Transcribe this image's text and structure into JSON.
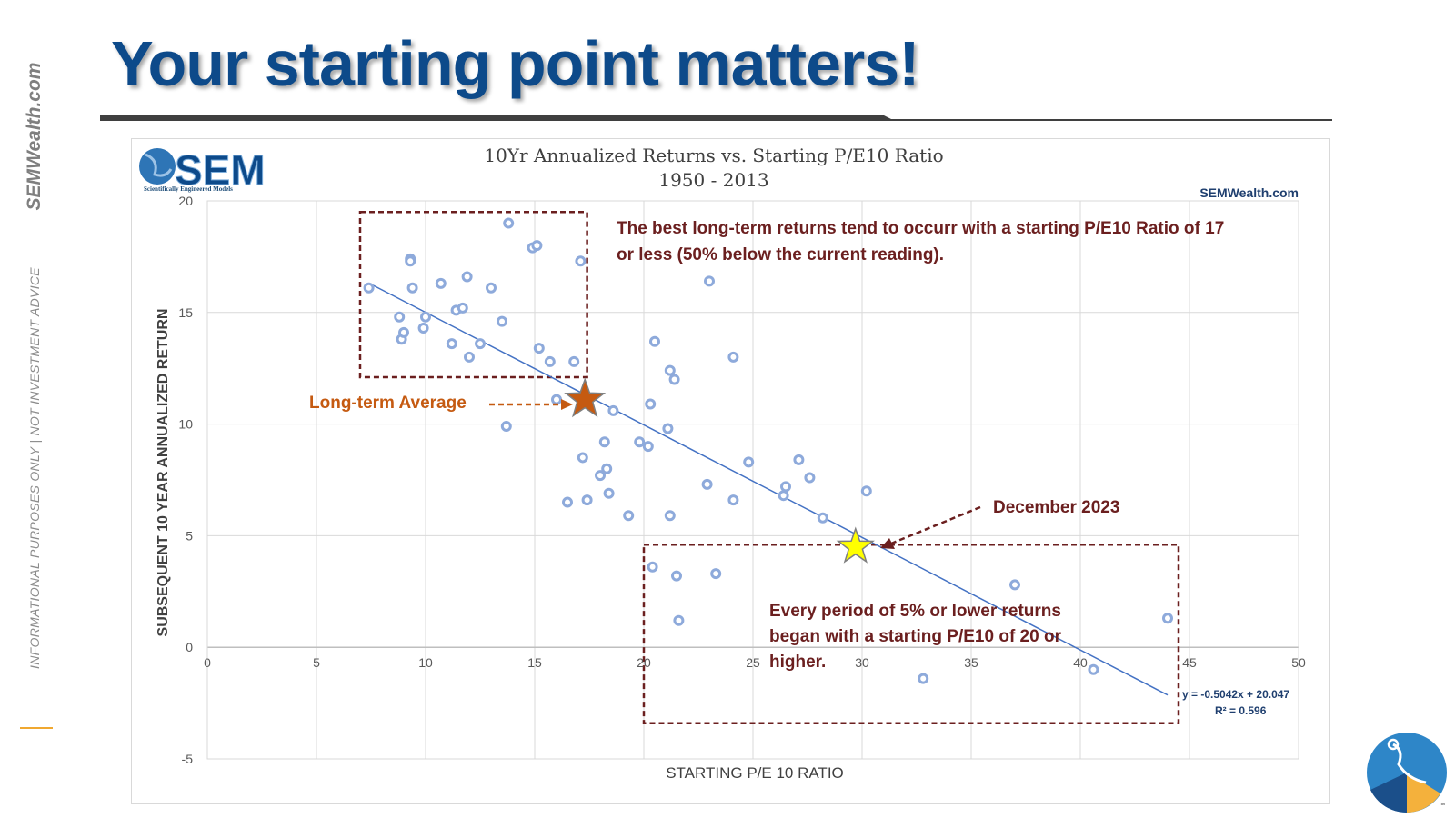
{
  "slide": {
    "title": "Your starting point matters!",
    "side_brand": "SEMWealth.com",
    "side_disclaimer": "INFORMATIONAL PURPOSES ONLY | NOT INVESTMENT ADVICE"
  },
  "logo": {
    "text": "SEM",
    "tagline": "Scientifically Engineered Models",
    "site": "SEMWealth.com",
    "tm": "™"
  },
  "colors": {
    "title": "#0d4a8a",
    "points": "#8eaadb",
    "trendline": "#4472c4",
    "box": "#6b1f1f",
    "annotation": "#6b1f1f",
    "average": "#c55a11",
    "current": "#ffff00"
  },
  "chart_data": {
    "type": "scatter",
    "title_line1": "10Yr Annualized Returns vs. Starting P/E10 Ratio",
    "title_line2": "1950 - 2013",
    "xlabel": "STARTING P/E 10 RATIO",
    "ylabel": "SUBSEQUENT 10 YEAR ANNUALIZED RETURN",
    "xlim": [
      0,
      50
    ],
    "ylim": [
      -5,
      20
    ],
    "xticks": [
      0,
      5,
      10,
      15,
      20,
      25,
      30,
      35,
      40,
      45,
      50
    ],
    "yticks": [
      -5,
      0,
      5,
      10,
      15,
      20
    ],
    "grid": true,
    "points": [
      [
        7.4,
        16.1
      ],
      [
        8.8,
        14.8
      ],
      [
        8.9,
        13.8
      ],
      [
        9.0,
        14.1
      ],
      [
        9.3,
        17.4
      ],
      [
        9.3,
        17.3
      ],
      [
        9.4,
        16.1
      ],
      [
        9.9,
        14.3
      ],
      [
        10.0,
        14.8
      ],
      [
        10.7,
        16.3
      ],
      [
        11.2,
        13.6
      ],
      [
        11.4,
        15.1
      ],
      [
        11.7,
        15.2
      ],
      [
        11.9,
        16.6
      ],
      [
        12.0,
        13.0
      ],
      [
        12.5,
        13.6
      ],
      [
        13.0,
        16.1
      ],
      [
        13.5,
        14.6
      ],
      [
        13.7,
        9.9
      ],
      [
        13.8,
        19.0
      ],
      [
        14.9,
        17.9
      ],
      [
        15.1,
        18.0
      ],
      [
        15.2,
        13.4
      ],
      [
        15.7,
        12.8
      ],
      [
        16.0,
        11.1
      ],
      [
        16.5,
        6.5
      ],
      [
        16.8,
        12.8
      ],
      [
        17.1,
        17.3
      ],
      [
        17.2,
        8.5
      ],
      [
        17.4,
        6.6
      ],
      [
        18.0,
        7.7
      ],
      [
        18.2,
        9.2
      ],
      [
        18.3,
        8.0
      ],
      [
        18.4,
        6.9
      ],
      [
        18.6,
        10.6
      ],
      [
        19.3,
        5.9
      ],
      [
        19.8,
        9.2
      ],
      [
        20.2,
        9.0
      ],
      [
        20.3,
        10.9
      ],
      [
        20.4,
        3.6
      ],
      [
        20.5,
        13.7
      ],
      [
        21.1,
        9.8
      ],
      [
        21.2,
        12.4
      ],
      [
        21.2,
        5.9
      ],
      [
        21.4,
        12.0
      ],
      [
        21.5,
        3.2
      ],
      [
        21.6,
        1.2
      ],
      [
        22.9,
        7.3
      ],
      [
        23.0,
        16.4
      ],
      [
        23.3,
        3.3
      ],
      [
        24.1,
        13.0
      ],
      [
        24.1,
        6.6
      ],
      [
        24.8,
        8.3
      ],
      [
        26.4,
        6.8
      ],
      [
        26.5,
        7.2
      ],
      [
        27.1,
        8.4
      ],
      [
        27.6,
        7.6
      ],
      [
        28.2,
        5.8
      ],
      [
        30.2,
        7.0
      ],
      [
        32.8,
        -1.4
      ],
      [
        37.0,
        2.8
      ],
      [
        40.6,
        -1.0
      ],
      [
        44.0,
        1.3
      ]
    ],
    "trendline": {
      "slope": -0.5042,
      "intercept": 20.047,
      "x_range": [
        7.4,
        44.0
      ],
      "equation": "y = -0.5042x + 20.047",
      "r2": "R² = 0.596"
    },
    "markers": [
      {
        "name": "Long-term Average",
        "x": 17.3,
        "y": 11.1
      },
      {
        "name": "December 2023",
        "x": 29.7,
        "y": 4.5
      }
    ],
    "highlight_boxes": [
      {
        "x_range": [
          7.0,
          17.4
        ],
        "y_range": [
          12.1,
          19.5
        ]
      },
      {
        "x_range": [
          20.0,
          44.5
        ],
        "y_range": [
          -3.4,
          4.6
        ]
      }
    ],
    "annotations": {
      "top_box_text_line1": "The best long-term returns tend to occurr with a starting P/E10 Ratio of 17",
      "top_box_text_line2": "or less (50% below the current reading).",
      "bottom_box_text_line1": "Every period of 5% or lower returns",
      "bottom_box_text_line2": "began with a starting P/E10 of 20 or",
      "bottom_box_text_line3": "higher.",
      "average_label": "Long-term Average",
      "current_label": "December 2023"
    }
  }
}
